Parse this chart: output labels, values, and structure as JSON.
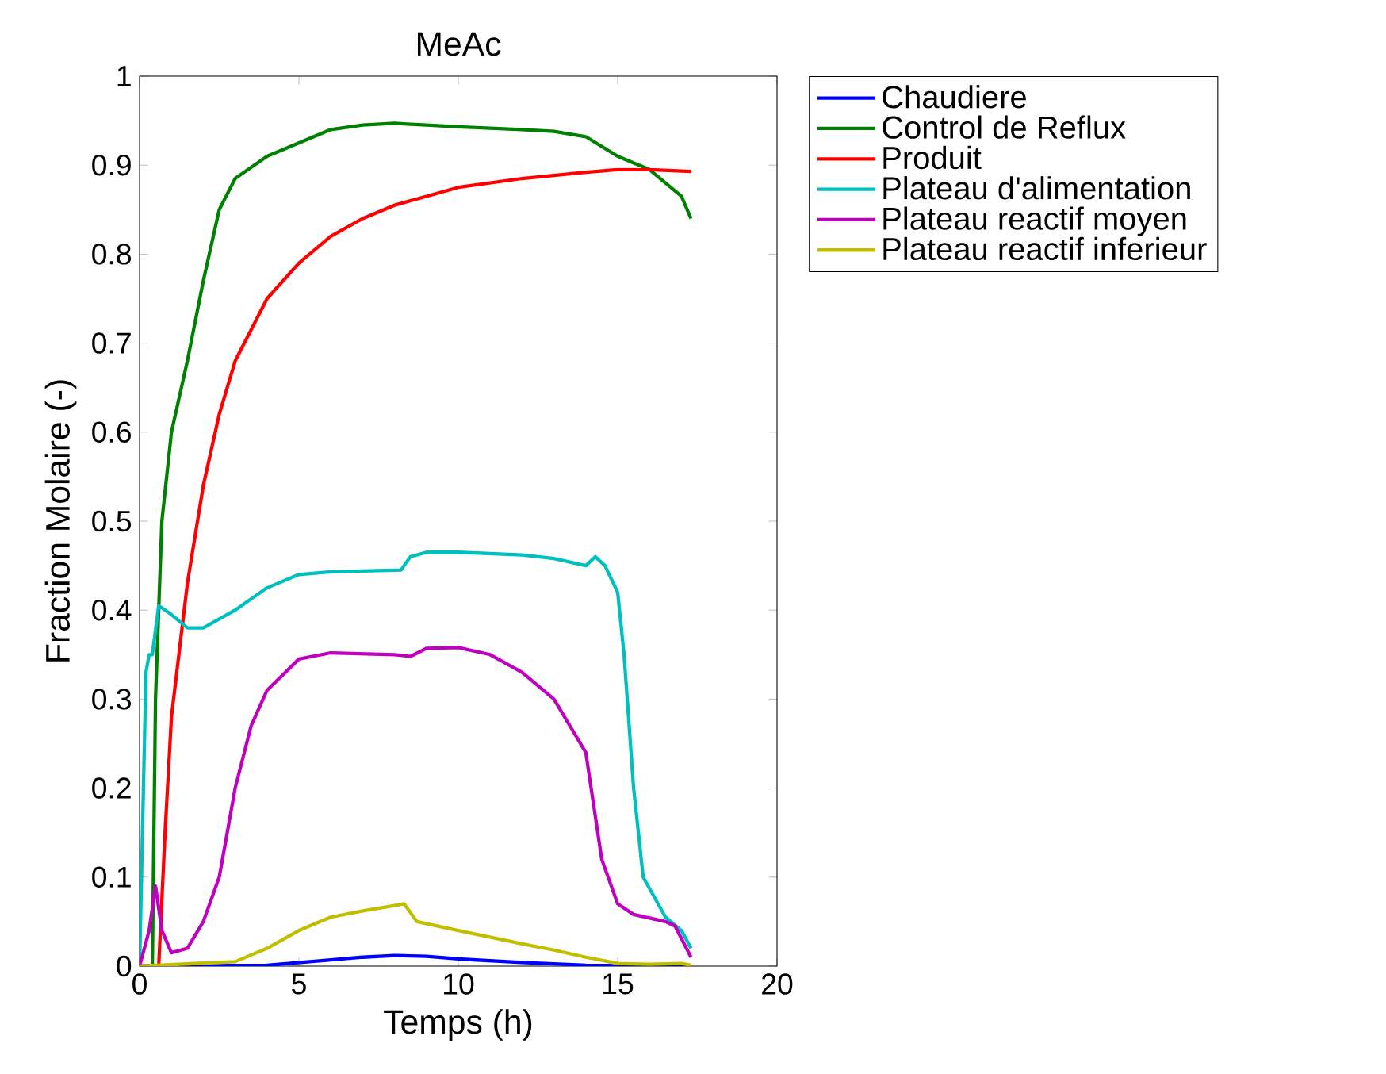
{
  "chart_data": {
    "type": "line",
    "title": "MeAc",
    "xlabel": "Temps (h)",
    "ylabel": "Fraction Molaire (-)",
    "xlim": [
      0,
      20
    ],
    "ylim": [
      0,
      1
    ],
    "xticks": [
      0,
      5,
      10,
      15,
      20
    ],
    "yticks": [
      0,
      0.1,
      0.2,
      0.3,
      0.4,
      0.5,
      0.6,
      0.7,
      0.8,
      0.9,
      1
    ],
    "legend": "top right",
    "grid": false,
    "marker": "none",
    "line_style": "solid",
    "series": [
      {
        "name": "Chaudiere",
        "color": "#0000ff",
        "x": [
          0,
          4,
          5,
          6,
          7,
          8,
          9,
          10,
          12,
          14,
          17.3
        ],
        "values": [
          0,
          0.001,
          0.004,
          0.007,
          0.01,
          0.012,
          0.011,
          0.008,
          0.004,
          0.001,
          0
        ]
      },
      {
        "name": "Control de Reflux",
        "color": "#008000",
        "x": [
          0,
          0.4,
          0.5,
          0.7,
          1,
          1.5,
          2,
          2.5,
          3,
          4,
          5,
          6,
          7,
          8,
          9,
          10,
          12,
          13,
          14,
          15,
          16,
          16.5,
          17,
          17.3
        ],
        "values": [
          0,
          0,
          0.3,
          0.5,
          0.6,
          0.68,
          0.77,
          0.85,
          0.885,
          0.91,
          0.925,
          0.94,
          0.945,
          0.947,
          0.945,
          0.943,
          0.94,
          0.938,
          0.932,
          0.91,
          0.895,
          0.88,
          0.865,
          0.84
        ]
      },
      {
        "name": "Produit",
        "color": "#ff0000",
        "x": [
          0,
          0.6,
          0.8,
          1,
          1.5,
          2,
          2.5,
          3,
          4,
          5,
          6,
          7,
          8,
          9,
          10,
          12,
          14,
          15,
          16,
          17.3
        ],
        "values": [
          0,
          0,
          0.15,
          0.28,
          0.43,
          0.54,
          0.62,
          0.68,
          0.75,
          0.79,
          0.82,
          0.84,
          0.855,
          0.865,
          0.875,
          0.885,
          0.892,
          0.895,
          0.895,
          0.893
        ]
      },
      {
        "name": "Plateau d'alimentation",
        "color": "#00bfbf",
        "x": [
          0,
          0.2,
          0.3,
          0.4,
          0.6,
          1,
          1.5,
          2,
          3,
          4,
          5,
          6,
          8.2,
          8.5,
          9,
          10,
          12,
          13,
          14,
          14.3,
          14.6,
          15,
          15.2,
          15.5,
          15.8,
          16.5,
          17,
          17.3
        ],
        "values": [
          0,
          0.33,
          0.35,
          0.35,
          0.405,
          0.395,
          0.38,
          0.38,
          0.4,
          0.425,
          0.44,
          0.443,
          0.445,
          0.46,
          0.465,
          0.465,
          0.462,
          0.458,
          0.45,
          0.46,
          0.45,
          0.42,
          0.35,
          0.2,
          0.1,
          0.055,
          0.04,
          0.02
        ]
      },
      {
        "name": "Plateau reactif moyen",
        "color": "#bf00bf",
        "x": [
          0,
          0.3,
          0.5,
          0.7,
          1,
          1.5,
          2,
          2.5,
          3,
          3.5,
          4,
          5,
          6,
          8,
          8.5,
          9,
          10,
          11,
          12,
          13,
          13.5,
          14,
          14.5,
          15,
          15.5,
          16.5,
          16.8,
          17.3
        ],
        "values": [
          0,
          0.04,
          0.09,
          0.04,
          0.015,
          0.02,
          0.05,
          0.1,
          0.2,
          0.27,
          0.31,
          0.345,
          0.352,
          0.35,
          0.348,
          0.357,
          0.358,
          0.35,
          0.33,
          0.3,
          0.27,
          0.24,
          0.12,
          0.07,
          0.058,
          0.05,
          0.045,
          0.01
        ]
      },
      {
        "name": "Plateau reactif inferieur",
        "color": "#bfbf00",
        "x": [
          0,
          3,
          4,
          5,
          6,
          7,
          8,
          8.3,
          8.7,
          10,
          12,
          13,
          14,
          15,
          16,
          17,
          17.3
        ],
        "values": [
          0,
          0.005,
          0.02,
          0.04,
          0.055,
          0.062,
          0.068,
          0.07,
          0.05,
          0.04,
          0.025,
          0.018,
          0.01,
          0.003,
          0.002,
          0.003,
          0.001
        ]
      }
    ]
  }
}
